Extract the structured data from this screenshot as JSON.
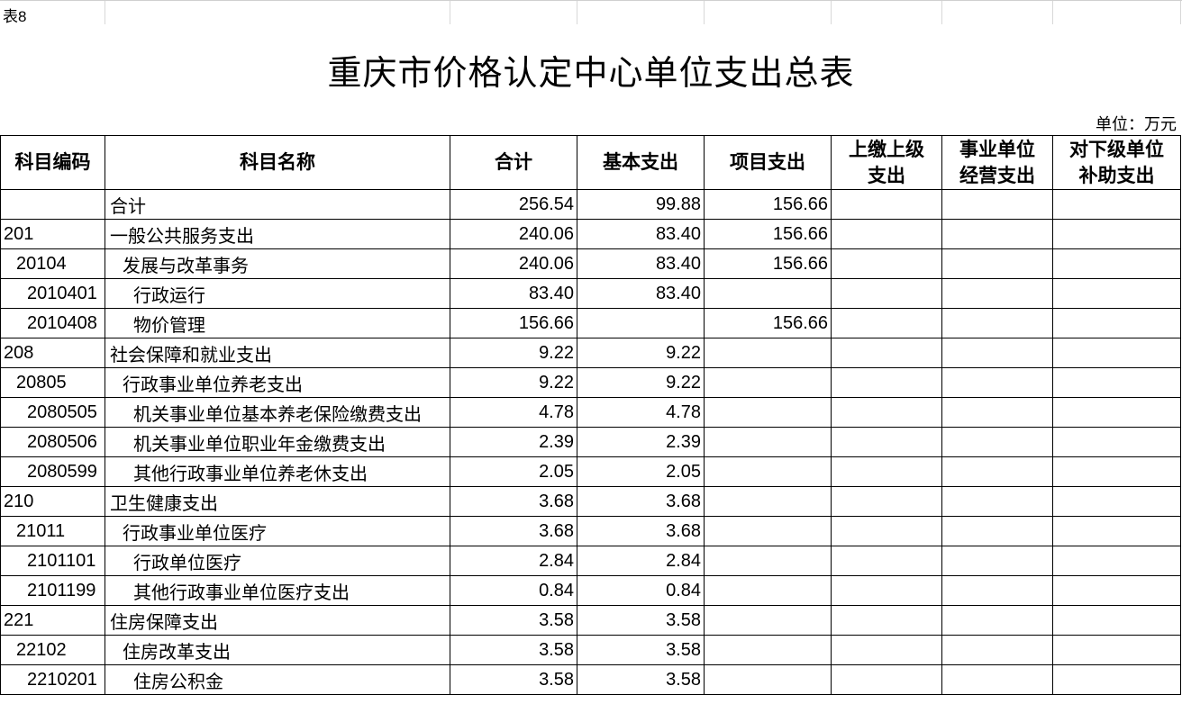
{
  "sheet_label": "表8",
  "title": "重庆市价格认定中心单位支出总表",
  "unit": "单位：万元",
  "headers": [
    "科目编码",
    "科目名称",
    "合计",
    "基本支出",
    "项目支出",
    "上缴上级\n支出",
    "事业单位\n经营支出",
    "对下级单位\n补助支出"
  ],
  "rows": [
    {
      "level": 0,
      "code": "",
      "name": "合计",
      "total": "256.54",
      "basic": "99.88",
      "project": "156.66"
    },
    {
      "level": 0,
      "code": "201",
      "name": "一般公共服务支出",
      "total": "240.06",
      "basic": "83.40",
      "project": "156.66"
    },
    {
      "level": 1,
      "code": "20104",
      "name": "发展与改革事务",
      "total": "240.06",
      "basic": "83.40",
      "project": "156.66"
    },
    {
      "level": 2,
      "code": "2010401",
      "name": "行政运行",
      "total": "83.40",
      "basic": "83.40",
      "project": ""
    },
    {
      "level": 2,
      "code": "2010408",
      "name": "物价管理",
      "total": "156.66",
      "basic": "",
      "project": "156.66"
    },
    {
      "level": 0,
      "code": "208",
      "name": "社会保障和就业支出",
      "total": "9.22",
      "basic": "9.22",
      "project": ""
    },
    {
      "level": 1,
      "code": "20805",
      "name": "行政事业单位养老支出",
      "total": "9.22",
      "basic": "9.22",
      "project": ""
    },
    {
      "level": 2,
      "code": "2080505",
      "name": "机关事业单位基本养老保险缴费支出",
      "total": "4.78",
      "basic": "4.78",
      "project": ""
    },
    {
      "level": 2,
      "code": "2080506",
      "name": "机关事业单位职业年金缴费支出",
      "total": "2.39",
      "basic": "2.39",
      "project": ""
    },
    {
      "level": 2,
      "code": "2080599",
      "name": "其他行政事业单位养老休支出",
      "total": "2.05",
      "basic": "2.05",
      "project": ""
    },
    {
      "level": 0,
      "code": "210",
      "name": "卫生健康支出",
      "total": "3.68",
      "basic": "3.68",
      "project": ""
    },
    {
      "level": 1,
      "code": "21011",
      "name": "行政事业单位医疗",
      "total": "3.68",
      "basic": "3.68",
      "project": ""
    },
    {
      "level": 2,
      "code": "2101101",
      "name": "行政单位医疗",
      "total": "2.84",
      "basic": "2.84",
      "project": ""
    },
    {
      "level": 2,
      "code": "2101199",
      "name": "其他行政事业单位医疗支出",
      "total": "0.84",
      "basic": "0.84",
      "project": ""
    },
    {
      "level": 0,
      "code": "221",
      "name": "住房保障支出",
      "total": "3.58",
      "basic": "3.58",
      "project": ""
    },
    {
      "level": 1,
      "code": "22102",
      "name": "住房改革支出",
      "total": "3.58",
      "basic": "3.58",
      "project": ""
    },
    {
      "level": 2,
      "code": "2210201",
      "name": "住房公积金",
      "total": "3.58",
      "basic": "3.58",
      "project": ""
    }
  ]
}
